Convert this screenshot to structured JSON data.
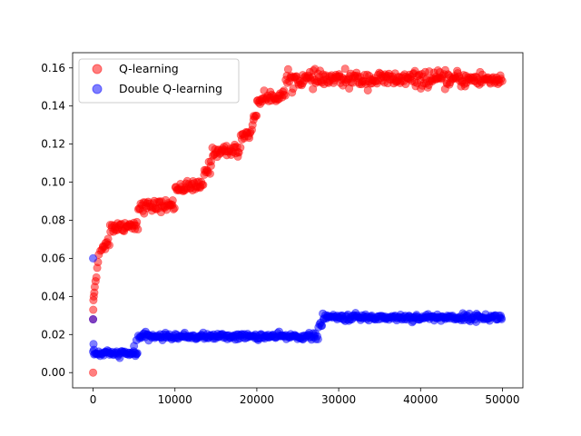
{
  "chart_data": {
    "type": "scatter",
    "title": "",
    "xlabel": "",
    "ylabel": "",
    "xlim": [
      -2500,
      52500
    ],
    "ylim": [
      -0.008,
      0.168
    ],
    "x_ticks": [
      0,
      10000,
      20000,
      30000,
      40000,
      50000
    ],
    "y_ticks": [
      0.0,
      0.02,
      0.04,
      0.06,
      0.08,
      0.1,
      0.12,
      0.14,
      0.16
    ],
    "grid": false,
    "legend_position": "upper-left",
    "marker_alpha": 0.5,
    "series": [
      {
        "name": "Q-learning",
        "color": "#ff0000",
        "x_range": [
          0,
          50000
        ],
        "outliers": [
          [
            0,
            0.0
          ],
          [
            0,
            0.028
          ],
          [
            20,
            0.033
          ],
          [
            40,
            0.038
          ],
          [
            80,
            0.04
          ],
          [
            150,
            0.042
          ],
          [
            200,
            0.045
          ],
          [
            300,
            0.048
          ],
          [
            400,
            0.05
          ],
          [
            500,
            0.055
          ],
          [
            600,
            0.058
          ],
          [
            700,
            0.062
          ],
          [
            900,
            0.064
          ]
        ],
        "segments": [
          {
            "x_start": 1000,
            "x_end": 2000,
            "y_start": 0.066,
            "y_end": 0.069,
            "jitter": 0.0015
          },
          {
            "x_start": 2000,
            "x_end": 5500,
            "y_start": 0.076,
            "y_end": 0.078,
            "jitter": 0.0015
          },
          {
            "x_start": 5500,
            "x_end": 10000,
            "y_start": 0.087,
            "y_end": 0.088,
            "jitter": 0.0015
          },
          {
            "x_start": 10000,
            "x_end": 13500,
            "y_start": 0.097,
            "y_end": 0.098,
            "jitter": 0.0015
          },
          {
            "x_start": 13500,
            "x_end": 14500,
            "y_start": 0.105,
            "y_end": 0.109,
            "jitter": 0.0015
          },
          {
            "x_start": 14500,
            "x_end": 18000,
            "y_start": 0.116,
            "y_end": 0.117,
            "jitter": 0.0015
          },
          {
            "x_start": 18000,
            "x_end": 19500,
            "y_start": 0.124,
            "y_end": 0.127,
            "jitter": 0.0015
          },
          {
            "x_start": 19500,
            "x_end": 20000,
            "y_start": 0.133,
            "y_end": 0.137,
            "jitter": 0.0015
          },
          {
            "x_start": 20000,
            "x_end": 22000,
            "y_start": 0.143,
            "y_end": 0.145,
            "jitter": 0.0015
          },
          {
            "x_start": 22000,
            "x_end": 23500,
            "y_start": 0.145,
            "y_end": 0.146,
            "jitter": 0.0015
          },
          {
            "x_start": 23500,
            "x_end": 50000,
            "y_start": 0.154,
            "y_end": 0.154,
            "jitter": 0.002
          }
        ]
      },
      {
        "name": "Double Q-learning",
        "color": "#0000ff",
        "x_range": [
          0,
          50000
        ],
        "outliers": [
          [
            0,
            0.06
          ],
          [
            0,
            0.028
          ],
          [
            50,
            0.015
          ],
          [
            100,
            0.012
          ],
          [
            5000,
            0.014
          ],
          [
            5300,
            0.017
          ]
        ],
        "segments": [
          {
            "x_start": 0,
            "x_end": 5500,
            "y_start": 0.01,
            "y_end": 0.01,
            "jitter": 0.0008
          },
          {
            "x_start": 5500,
            "x_end": 27500,
            "y_start": 0.019,
            "y_end": 0.019,
            "jitter": 0.0008
          },
          {
            "x_start": 27500,
            "x_end": 28000,
            "y_start": 0.024,
            "y_end": 0.026,
            "jitter": 0.001
          },
          {
            "x_start": 28000,
            "x_end": 50000,
            "y_start": 0.029,
            "y_end": 0.029,
            "jitter": 0.0009
          }
        ]
      }
    ]
  }
}
